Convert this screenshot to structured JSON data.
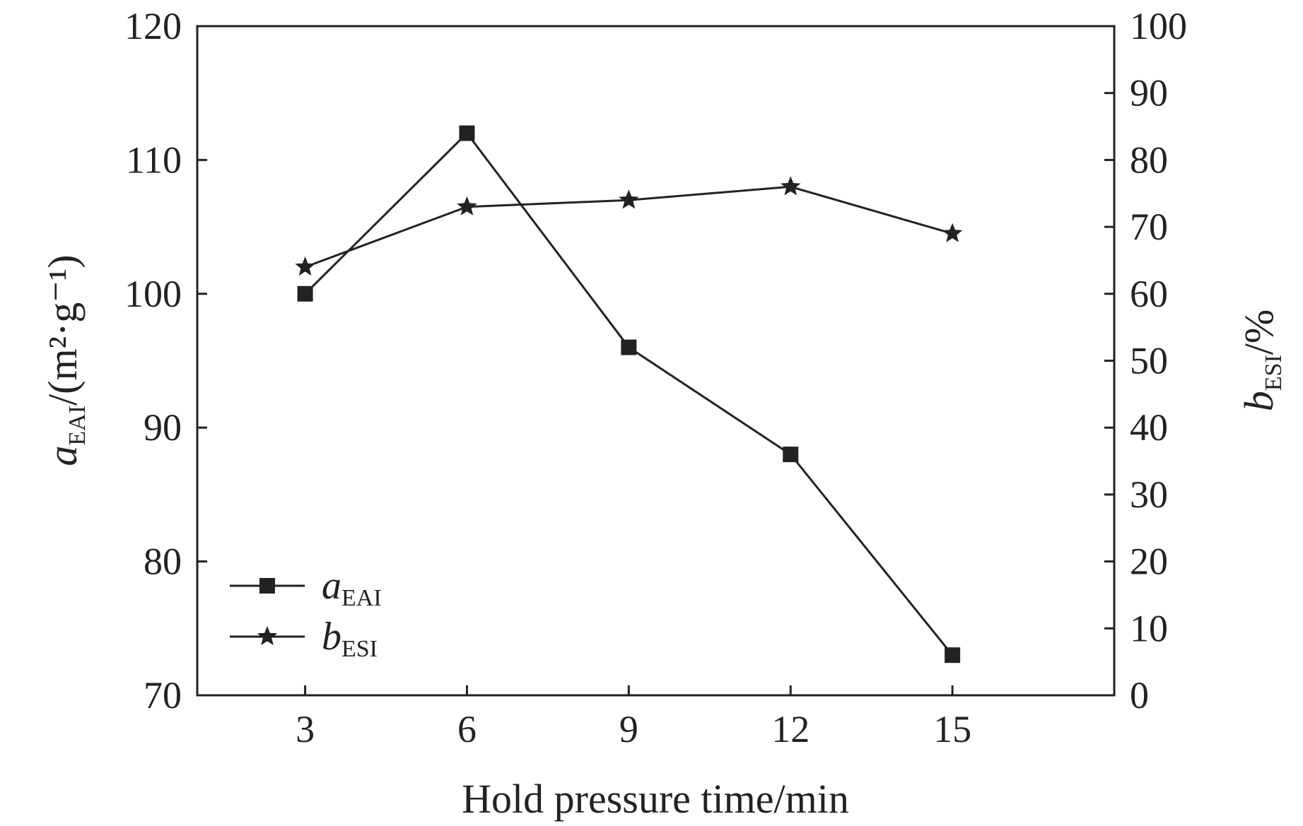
{
  "chart_data": {
    "type": "line",
    "x": [
      3,
      6,
      9,
      12,
      15
    ],
    "xlabel": "Hold pressure time/min",
    "xlim": [
      1,
      18
    ],
    "y_left": {
      "label_main": "a",
      "label_sub": "EAI",
      "label_rest": "/(m²·g⁻¹)",
      "lim": [
        70,
        120
      ],
      "ticks": [
        70,
        80,
        90,
        100,
        110,
        120
      ]
    },
    "y_right": {
      "label_main": "b",
      "label_sub": "ESI",
      "label_rest": "/%",
      "lim": [
        0,
        100
      ],
      "ticks": [
        0,
        10,
        20,
        30,
        40,
        50,
        60,
        70,
        80,
        90,
        100
      ]
    },
    "series": [
      {
        "name_main": "a",
        "name_sub": "EAI",
        "axis": "left",
        "marker": "square",
        "values": [
          100,
          112,
          96,
          88,
          73
        ]
      },
      {
        "name_main": "b",
        "name_sub": "ESI",
        "axis": "right",
        "marker": "star",
        "values": [
          64,
          73,
          74,
          76,
          69
        ]
      }
    ],
    "legend_position": "bottom-left",
    "grid": false,
    "color": "#222222"
  }
}
